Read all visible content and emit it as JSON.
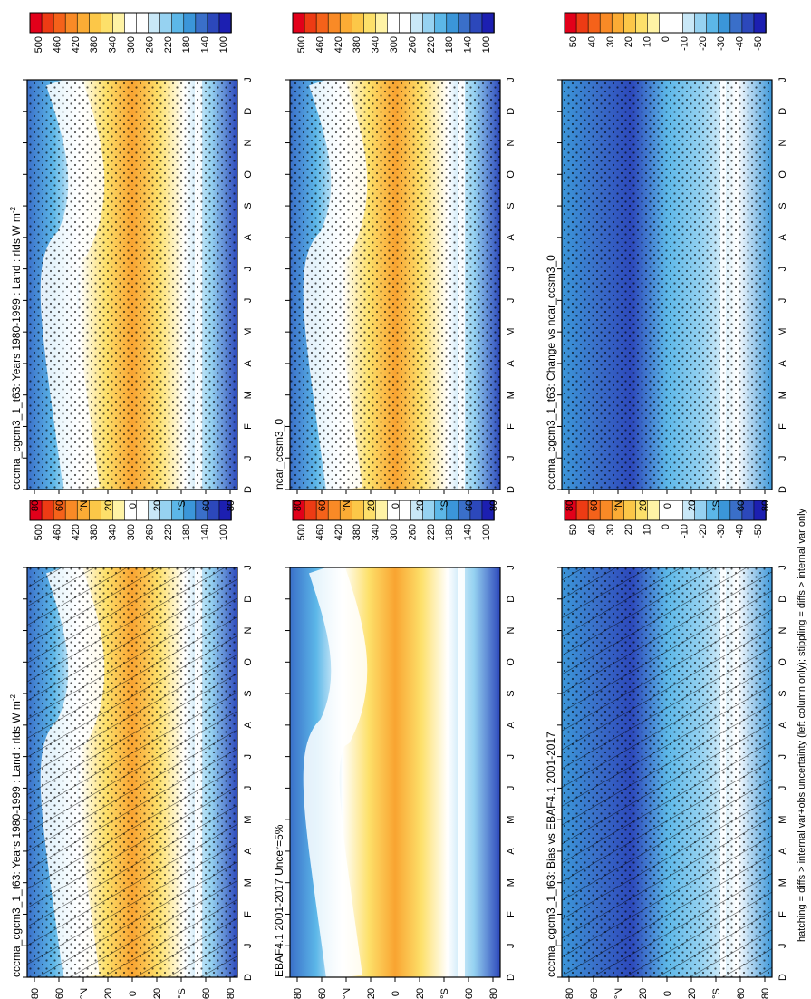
{
  "figure": {
    "footer_note": "hatching = diffs > internal var+obs uncertainty (left column only); stippling = diffs > internal var only"
  },
  "colors": {
    "full_scale": [
      "#e2001a",
      "#ed3b14",
      "#f5621a",
      "#f98a26",
      "#fbac35",
      "#fcc748",
      "#fde06a",
      "#fff3a5",
      "#ffffff",
      "#ffffff",
      "#c9e8f7",
      "#96d2f1",
      "#5cb7e8",
      "#3b96d9",
      "#3a6fc9",
      "#2c48bb",
      "#1c1fb1"
    ],
    "diff_scale": [
      "#e2001a",
      "#ed3b14",
      "#f5621a",
      "#f98a26",
      "#fbac35",
      "#fcc748",
      "#fde06a",
      "#fff3a5",
      "#ffffff",
      "#ffffff",
      "#c9e8f7",
      "#96d2f1",
      "#5cb7e8",
      "#3b96d9",
      "#3a6fc9",
      "#2c48bb",
      "#1c1fb1"
    ],
    "mean_colormap": [
      "#3a6fc9",
      "#5cb7e8",
      "#ffffff",
      "#fde06a",
      "#f9a431",
      "#fde06a",
      "#ffffff",
      "#96d2f1",
      "#2c48bb"
    ],
    "diff_colormap": [
      "#3b96d9",
      "#3a6fc9",
      "#2c48bb",
      "#5cb7e8",
      "#96d2f1",
      "#ffffff",
      "#3b96d9"
    ]
  },
  "chart_data": [
    {
      "type": "heatmap",
      "panel": "left-top",
      "title": "cccma_cgcm3_1_t63: Years 1980-1999 : Land : rlds W m",
      "title_superscript": "-2",
      "variable": "rlds (surface downwelling longwave, land)",
      "units": "W m-2",
      "x": [
        "D",
        "J",
        "F",
        "M",
        "A",
        "M",
        "J",
        "J",
        "A",
        "S",
        "O",
        "N",
        "D",
        "J"
      ],
      "y_ticks": [
        "80",
        "60",
        "°N",
        "20",
        "0",
        "20",
        "°S",
        "60",
        "80"
      ],
      "colorbar_ticks": [
        "500",
        "460",
        "420",
        "380",
        "340",
        "300",
        "260",
        "220",
        "180",
        "140",
        "100"
      ],
      "colorbar_range": [
        80,
        520
      ],
      "overlay": "hatching+stippling",
      "summary": {
        "tropics_max": 430,
        "antarctic_min": 120,
        "arctic_summer": 300
      }
    },
    {
      "type": "heatmap",
      "panel": "left-middle",
      "title": "EBAF4.1 2001-2017 Uncer=5%",
      "variable": "rlds (surface downwelling longwave, land)",
      "units": "W m-2",
      "x": [
        "D",
        "J",
        "F",
        "M",
        "A",
        "M",
        "J",
        "J",
        "A",
        "S",
        "O",
        "N",
        "D",
        "J"
      ],
      "y_ticks": [
        "80",
        "60",
        "°N",
        "20",
        "0",
        "20",
        "°S",
        "60",
        "80"
      ],
      "colorbar_ticks": [
        "500",
        "460",
        "420",
        "380",
        "340",
        "300",
        "260",
        "220",
        "180",
        "140",
        "100"
      ],
      "colorbar_range": [
        80,
        520
      ],
      "overlay": "none",
      "summary": {
        "tropics_max": 420,
        "antarctic_min": 140,
        "arctic_summer": 290
      }
    },
    {
      "type": "heatmap",
      "panel": "left-bottom",
      "title": "cccma_cgcm3_1_t63: Bias vs EBAF4.1 2001-2017",
      "variable": "rlds bias",
      "units": "W m-2",
      "x": [
        "D",
        "J",
        "F",
        "M",
        "A",
        "M",
        "J",
        "J",
        "A",
        "S",
        "O",
        "N",
        "D",
        "J"
      ],
      "y_ticks": [
        "80",
        "60",
        "°N",
        "20",
        "0",
        "20",
        "°S",
        "60",
        "80"
      ],
      "colorbar_ticks": [
        "50",
        "40",
        "30",
        "20",
        "10",
        "0",
        "-10",
        "-20",
        "-30",
        "-40",
        "-50"
      ],
      "colorbar_range": [
        -55,
        55
      ],
      "overlay": "hatching+stippling",
      "summary": {
        "nh_midlat_min": -45,
        "southern_max": 10
      }
    },
    {
      "type": "heatmap",
      "panel": "right-top",
      "title": "cccma_cgcm3_1_t63: Years 1980-1999 : Land : rlds W m",
      "title_superscript": "-2",
      "variable": "rlds (surface downwelling longwave, land)",
      "units": "W m-2",
      "x": [
        "D",
        "J",
        "F",
        "M",
        "A",
        "M",
        "J",
        "J",
        "A",
        "S",
        "O",
        "N",
        "D",
        "J"
      ],
      "y_ticks": [
        "80",
        "60",
        "°N",
        "20",
        "0",
        "20",
        "°S",
        "60",
        "80"
      ],
      "colorbar_ticks": [
        "500",
        "460",
        "420",
        "380",
        "340",
        "300",
        "260",
        "220",
        "180",
        "140",
        "100"
      ],
      "colorbar_range": [
        80,
        520
      ],
      "overlay": "stippling",
      "summary": {
        "tropics_max": 430,
        "antarctic_min": 120,
        "arctic_summer": 300
      }
    },
    {
      "type": "heatmap",
      "panel": "right-middle",
      "title": "ncar_ccsm3_0",
      "variable": "rlds (surface downwelling longwave, land)",
      "units": "W m-2",
      "x": [
        "D",
        "J",
        "F",
        "M",
        "A",
        "M",
        "J",
        "J",
        "A",
        "S",
        "O",
        "N",
        "D",
        "J"
      ],
      "y_ticks": [
        "80",
        "60",
        "°N",
        "20",
        "0",
        "20",
        "°S",
        "60",
        "80"
      ],
      "colorbar_ticks": [
        "500",
        "460",
        "420",
        "380",
        "340",
        "300",
        "260",
        "220",
        "180",
        "140",
        "100"
      ],
      "colorbar_range": [
        80,
        520
      ],
      "overlay": "stippling",
      "summary": {
        "tropics_max": 420,
        "antarctic_min": 110,
        "arctic_summer": 300
      }
    },
    {
      "type": "heatmap",
      "panel": "right-bottom",
      "title": "cccma_cgcm3_1_t63: Change vs ncar_ccsm3_0",
      "variable": "rlds difference",
      "units": "W m-2",
      "x": [
        "D",
        "J",
        "F",
        "M",
        "A",
        "M",
        "J",
        "J",
        "A",
        "S",
        "O",
        "N",
        "D",
        "J"
      ],
      "y_ticks": [
        "80",
        "60",
        "°N",
        "20",
        "0",
        "20",
        "°S",
        "60",
        "80"
      ],
      "colorbar_ticks": [
        "50",
        "40",
        "30",
        "20",
        "10",
        "0",
        "-10",
        "-20",
        "-30",
        "-40",
        "-50"
      ],
      "colorbar_range": [
        -55,
        55
      ],
      "overlay": "stippling",
      "summary": {
        "nh_highlat_min": -40,
        "typical": -15
      }
    }
  ]
}
